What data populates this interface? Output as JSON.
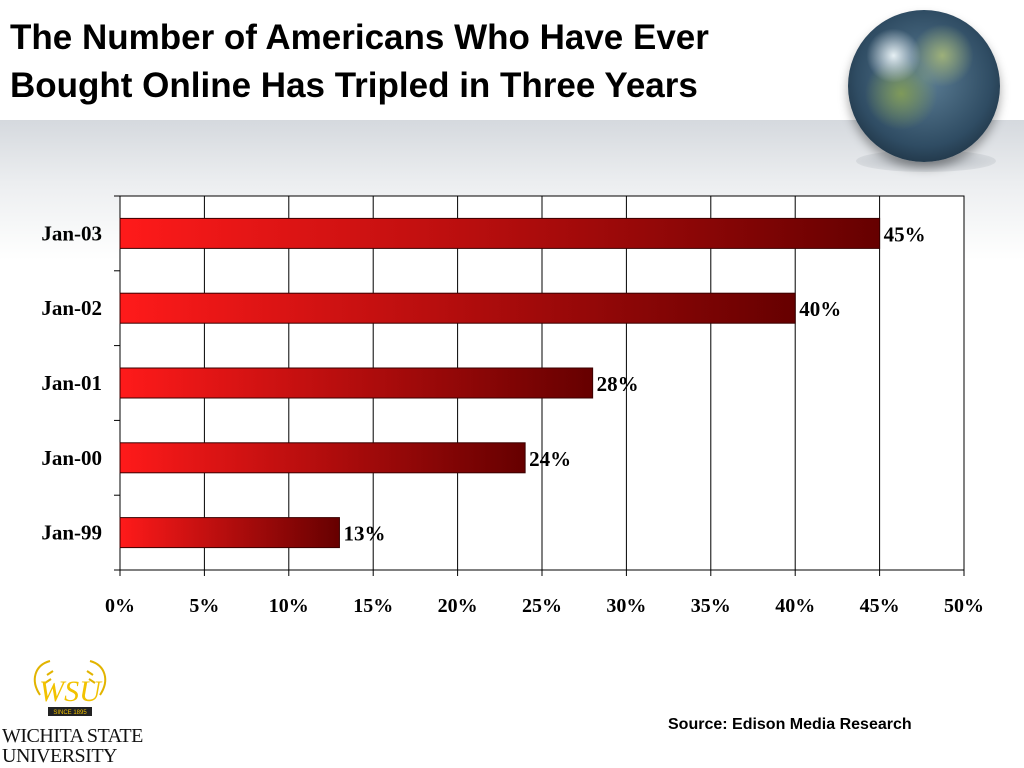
{
  "slide": {
    "title_line1": "The Number of Americans Who Have Ever",
    "title_line2": "Bought Online Has Tripled in Three Years",
    "source": "Source:  Edison Media Research",
    "logo": {
      "line1": "WICHITA STATE",
      "line2": "UNIVERSITY",
      "emblem_letters": "WSU",
      "emblem_ribbon": "SINCE 1895"
    }
  },
  "colors": {
    "bar_start": "#ff1a1a",
    "bar_end": "#660000",
    "grid": "#000000",
    "text": "#000000"
  },
  "chart_data": {
    "type": "bar",
    "orientation": "horizontal",
    "categories": [
      "Jan-03",
      "Jan-02",
      "Jan-01",
      "Jan-00",
      "Jan-99"
    ],
    "values": [
      45,
      40,
      28,
      24,
      13
    ],
    "data_labels": [
      "45%",
      "40%",
      "28%",
      "24%",
      "13%"
    ],
    "x_ticks": [
      "0%",
      "5%",
      "10%",
      "15%",
      "20%",
      "25%",
      "30%",
      "35%",
      "40%",
      "45%",
      "50%"
    ],
    "xlim": [
      0,
      50
    ],
    "xlabel": "",
    "ylabel": "",
    "grid": true,
    "legend": "none"
  }
}
